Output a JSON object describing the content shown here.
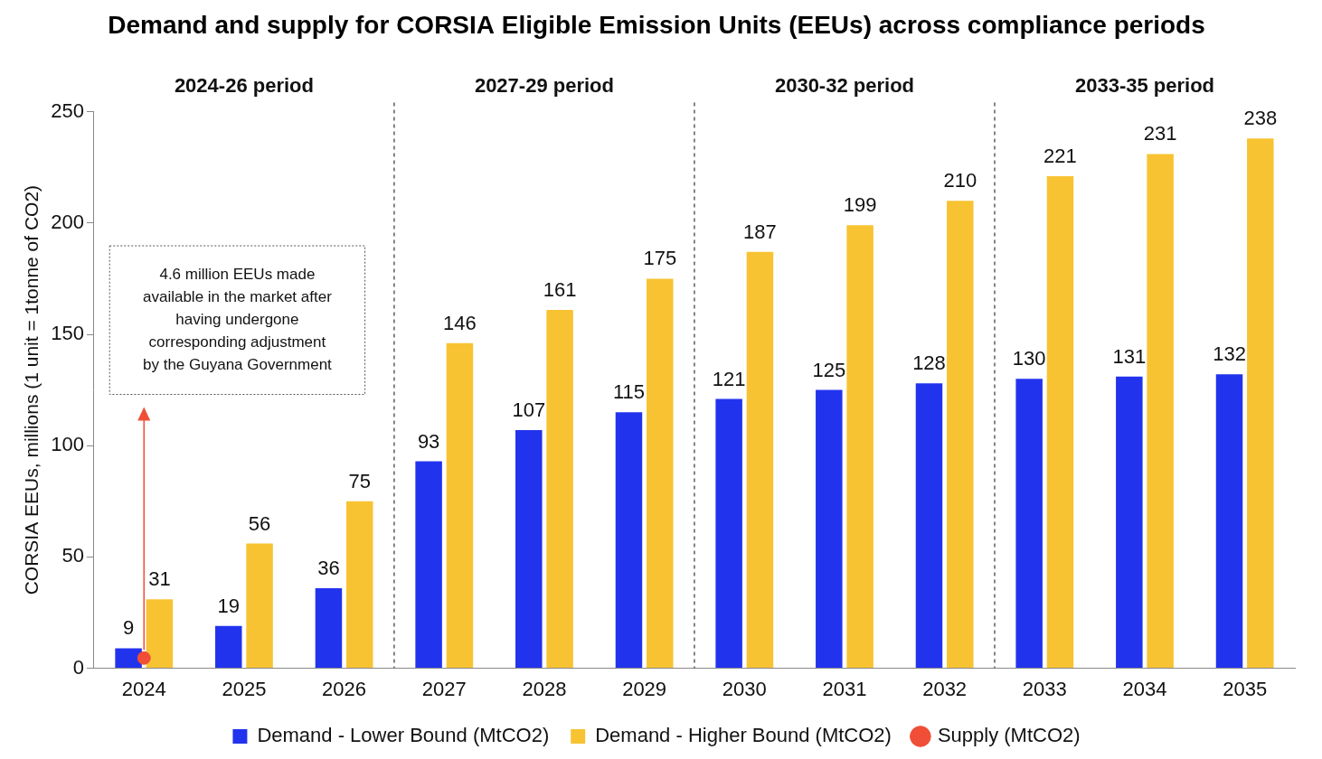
{
  "chart_data": {
    "type": "bar",
    "title": "Demand and supply for CORSIA Eligible Emission Units (EEUs) across compliance periods",
    "y_label": "CORSIA EEUs, millions (1 unit = 1tonne of CO2)",
    "categories": [
      "2024",
      "2025",
      "2026",
      "2027",
      "2028",
      "2029",
      "2030",
      "2031",
      "2032",
      "2033",
      "2034",
      "2035"
    ],
    "series": [
      {
        "name": "Demand - Lower Bound (MtCO2)",
        "type": "bar",
        "color": "#2233ee",
        "data_labels": true,
        "values": [
          9,
          19,
          36,
          93,
          107,
          115,
          121,
          125,
          128,
          130,
          131,
          132
        ]
      },
      {
        "name": "Demand - Higher Bound (MtCO2)",
        "type": "bar",
        "color": "#f8c332",
        "data_labels": true,
        "values": [
          31,
          56,
          75,
          146,
          161,
          175,
          187,
          199,
          210,
          221,
          231,
          238
        ]
      },
      {
        "name": "Supply (MtCO2)",
        "type": "scatter",
        "marker": "circle",
        "color": "#f04e37",
        "data_labels": false,
        "values": [
          4.6,
          null,
          null,
          null,
          null,
          null,
          null,
          null,
          null,
          null,
          null,
          null
        ]
      }
    ],
    "periods": [
      {
        "label": "2024-26 period",
        "categories": [
          "2024",
          "2026"
        ]
      },
      {
        "label": "2027-29 period",
        "categories": [
          "2027",
          "2029"
        ]
      },
      {
        "label": "2030-32 period",
        "categories": [
          "2030",
          "2032"
        ]
      },
      {
        "label": "2033-35 period",
        "categories": [
          "2033",
          "2035"
        ]
      }
    ],
    "annotation": {
      "text": [
        "4.6 million EEUs made",
        "available in the market after",
        "having undergone",
        "corresponding adjustment",
        "by the Guyana Government"
      ],
      "series": "Supply (MtCO2)",
      "category": "2024"
    },
    "ylim": [
      0,
      250
    ],
    "yticks": [
      0,
      50,
      100,
      150,
      200,
      250
    ],
    "grid": false,
    "legend": "bottom"
  }
}
